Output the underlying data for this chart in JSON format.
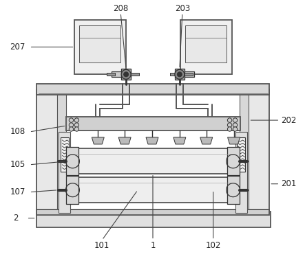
{
  "bg_color": "#ffffff",
  "lc": "#555555",
  "dc": "#333333",
  "figsize": [
    4.43,
    3.8
  ],
  "dpi": 100,
  "label_font": 8.5,
  "label_color": "#222222",
  "arrow_color": "#444444"
}
